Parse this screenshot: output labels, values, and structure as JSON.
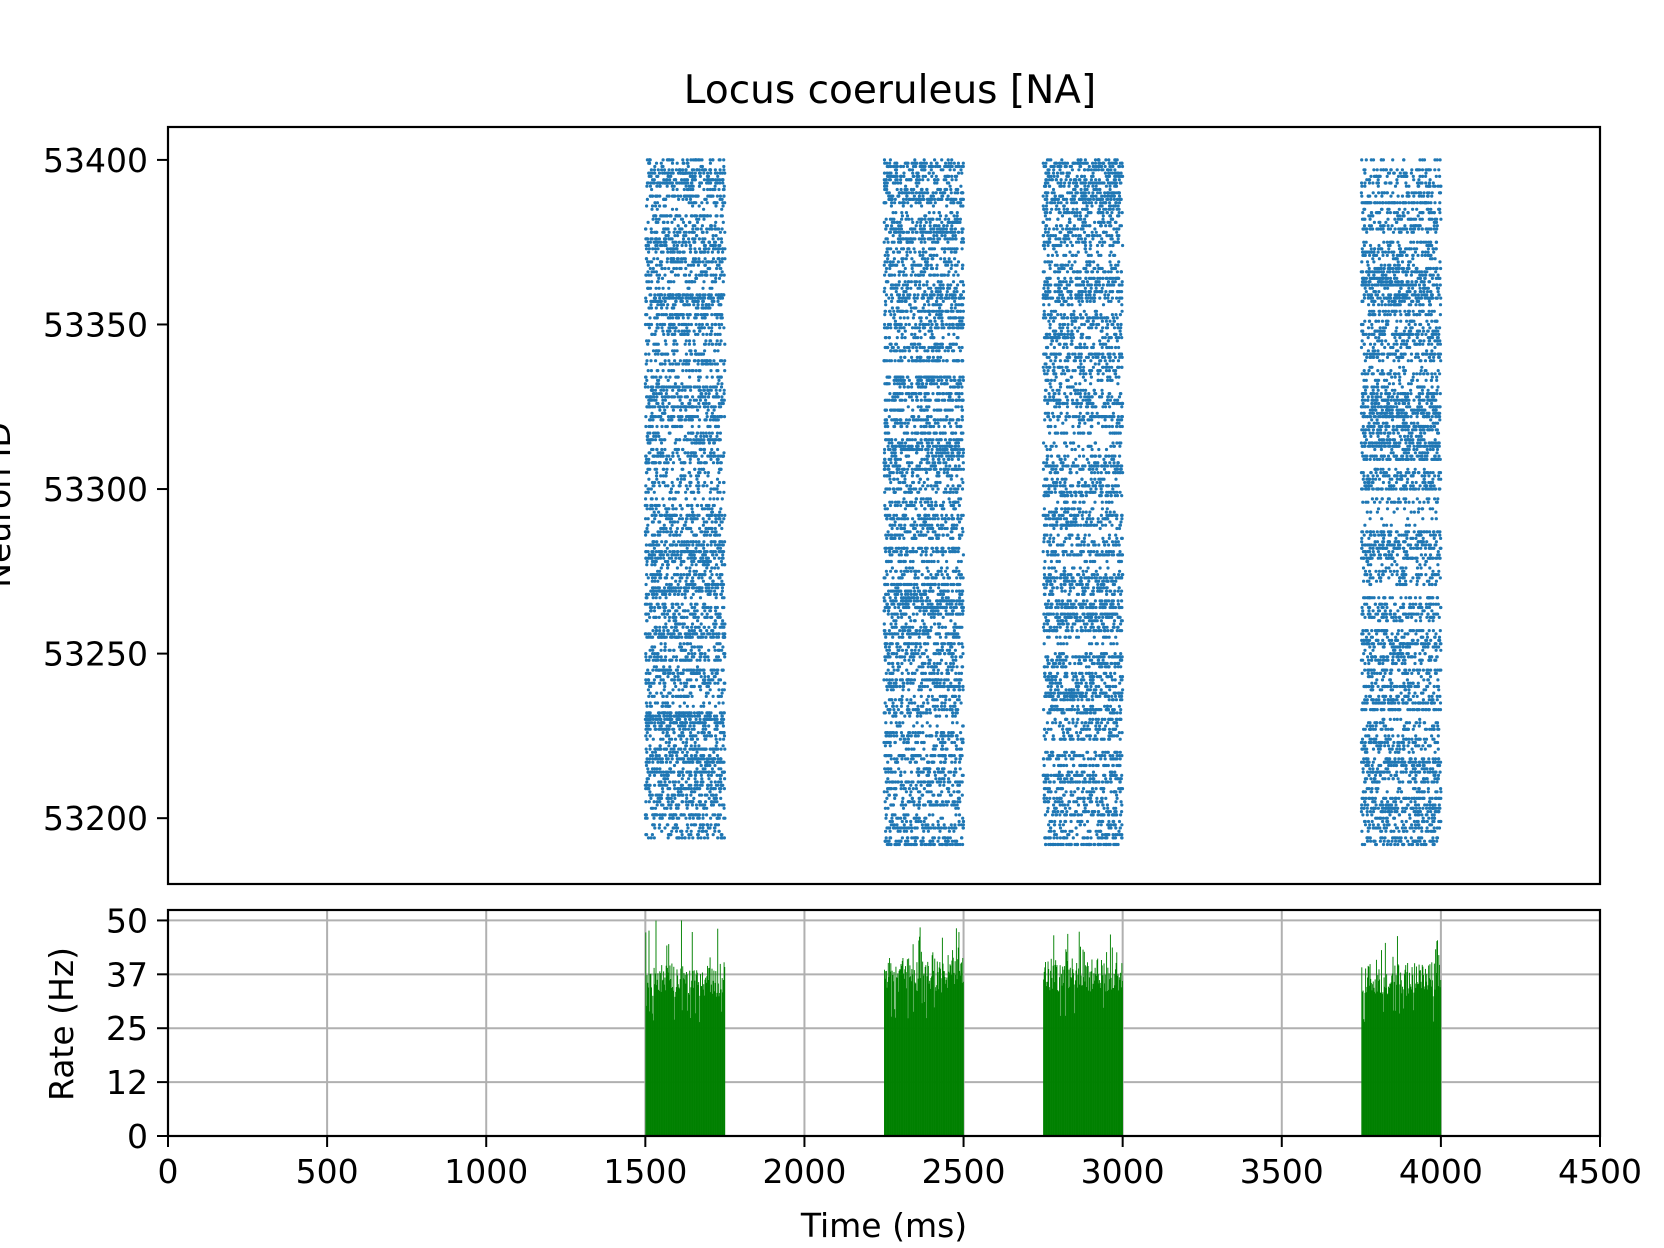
{
  "chart_data": [
    {
      "type": "scatter",
      "title": "Locus coeruleus [NA]",
      "xlabel": "",
      "ylabel": "Neuron ID",
      "xlim": [
        0,
        4500
      ],
      "ylim": [
        53180,
        53410
      ],
      "yticks": [
        53200,
        53250,
        53300,
        53350,
        53400
      ],
      "yticklabels": [
        "53200",
        "53250",
        "53300",
        "53350",
        "53400"
      ],
      "grid": false,
      "color": "#1f77b4",
      "neuron_range": [
        53192,
        53400
      ],
      "bursts": [
        {
          "start": 1500,
          "end": 1750
        },
        {
          "start": 2250,
          "end": 2500
        },
        {
          "start": 2750,
          "end": 3000
        },
        {
          "start": 3750,
          "end": 4000
        }
      ]
    },
    {
      "type": "bar",
      "title": "",
      "xlabel": "Time (ms)",
      "ylabel": "Rate (Hz)",
      "xlim": [
        0,
        4500
      ],
      "ylim": [
        0,
        52
      ],
      "xticks": [
        0,
        500,
        1000,
        1500,
        2000,
        2500,
        3000,
        3500,
        4000,
        4500
      ],
      "xticklabels": [
        "0",
        "500",
        "1000",
        "1500",
        "2000",
        "2500",
        "3000",
        "3500",
        "4000",
        "4500"
      ],
      "yticks": [
        0,
        12.4,
        24.8,
        37.2,
        49.6
      ],
      "yticklabels": [
        "0",
        "12",
        "25",
        "37",
        "50"
      ],
      "grid": true,
      "color": "#008000",
      "bin_ms": 2,
      "bursts": [
        {
          "start": 1500,
          "end": 1750,
          "mean_rate": 36,
          "peak_rate": 49.6
        },
        {
          "start": 2250,
          "end": 2500,
          "mean_rate": 37,
          "peak_rate": 48
        },
        {
          "start": 2750,
          "end": 3000,
          "mean_rate": 37,
          "peak_rate": 47
        },
        {
          "start": 3750,
          "end": 4000,
          "mean_rate": 36,
          "peak_rate": 46
        }
      ]
    }
  ]
}
